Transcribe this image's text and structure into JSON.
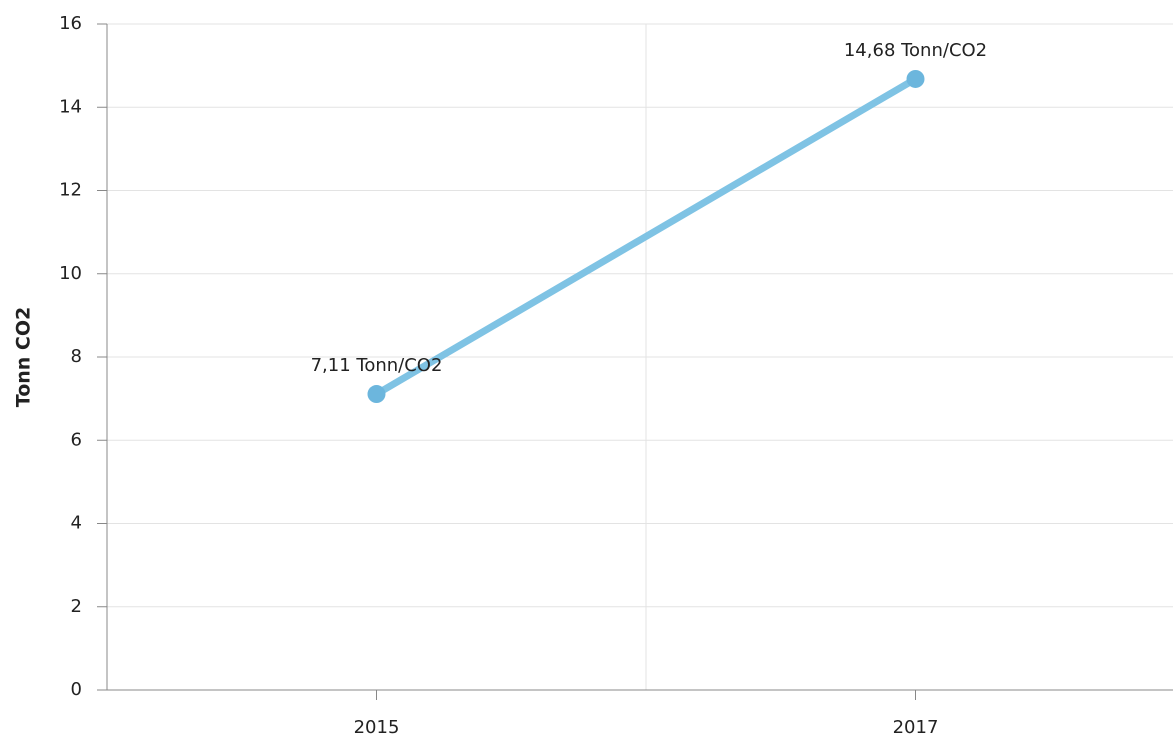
{
  "chart_data": {
    "type": "line",
    "categories": [
      "2015",
      "2017"
    ],
    "series": [
      {
        "name": "Tonn CO2",
        "color": "#7fc3e4",
        "values": [
          7.11,
          14.68
        ],
        "value_labels": [
          "7,11 Tonn/CO2",
          "14,68 Tonn/CO2"
        ]
      }
    ],
    "ylabel": "Tonn CO2",
    "ylim": [
      0,
      16
    ],
    "yticks": [
      0,
      2,
      4,
      6,
      8,
      10,
      12,
      14,
      16
    ],
    "grid": true
  }
}
